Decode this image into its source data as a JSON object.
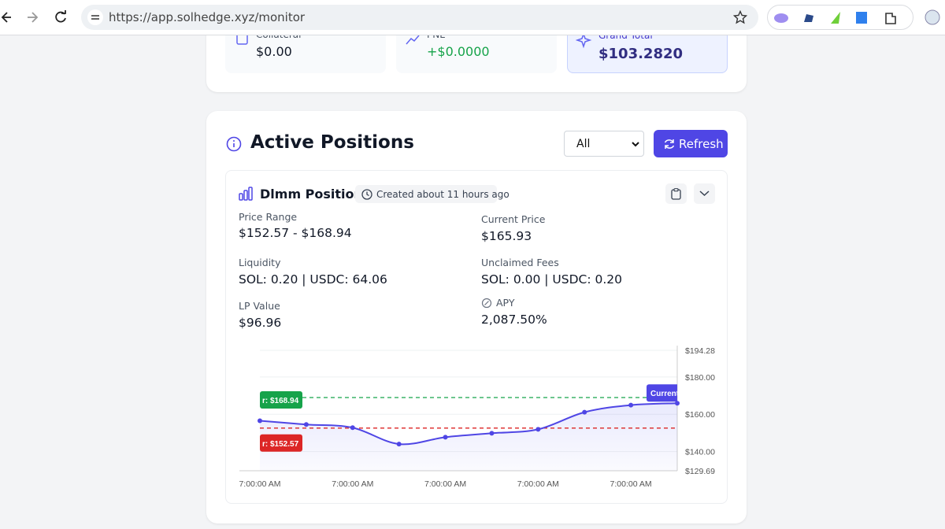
{
  "browser": {
    "url": "https://app.solhedge.xyz/monitor"
  },
  "stats": [
    {
      "label": "Collateral",
      "value": "$0.00"
    },
    {
      "label": "PNL",
      "value": "+$0.0000"
    },
    {
      "label": "Grand Total",
      "value": "$103.2820"
    }
  ],
  "section": {
    "title": "Active Positions",
    "filter": "All",
    "button": "Refresh"
  },
  "position": {
    "title": "Dlmm Position",
    "badge": "Created about 11 hours ago",
    "fields": [
      {
        "label": "Price Range",
        "value": "$152.57 - $168.94"
      },
      {
        "label": "Current Price",
        "value": "$165.93"
      },
      {
        "label": "Liquidity",
        "value": "SOL: 0.20 | USDC: 64.06"
      },
      {
        "label": "Unclaimed Fees",
        "value": "SOL: 0.00 | USDC: 0.20"
      },
      {
        "label": "LP Value",
        "value": "$96.96"
      },
      {
        "label": "APY",
        "value": "2,087.50%"
      }
    ]
  },
  "chart_data": {
    "type": "line",
    "categories": [
      "7:00:00 AM",
      null,
      "7:00:00 AM",
      null,
      "7:00:00 AM",
      null,
      "7:00:00 AM",
      null,
      "7:00:00 AM",
      null
    ],
    "values": [
      156.5,
      154.5,
      152.8,
      144,
      147.7,
      149.8,
      151.9,
      161.1,
      164.9,
      165.9
    ],
    "color": "#4f46e5",
    "ylim": [
      129.69,
      194.28
    ],
    "yticks": [
      {
        "value": 194.28,
        "label": "$194.28"
      },
      {
        "value": 180,
        "label": "$180.00"
      },
      {
        "value": 160,
        "label": "$160.00"
      },
      {
        "value": 140,
        "label": "$140.00"
      },
      {
        "value": 129.69,
        "label": "$129.69"
      }
    ],
    "grid": true,
    "reference_lines": [
      {
        "value": 168.94,
        "label": "r: $168.94",
        "color": "#16a34a"
      },
      {
        "value": 152.57,
        "label": "r: $152.57",
        "color": "#dc2626"
      }
    ],
    "current_label": "Current"
  }
}
